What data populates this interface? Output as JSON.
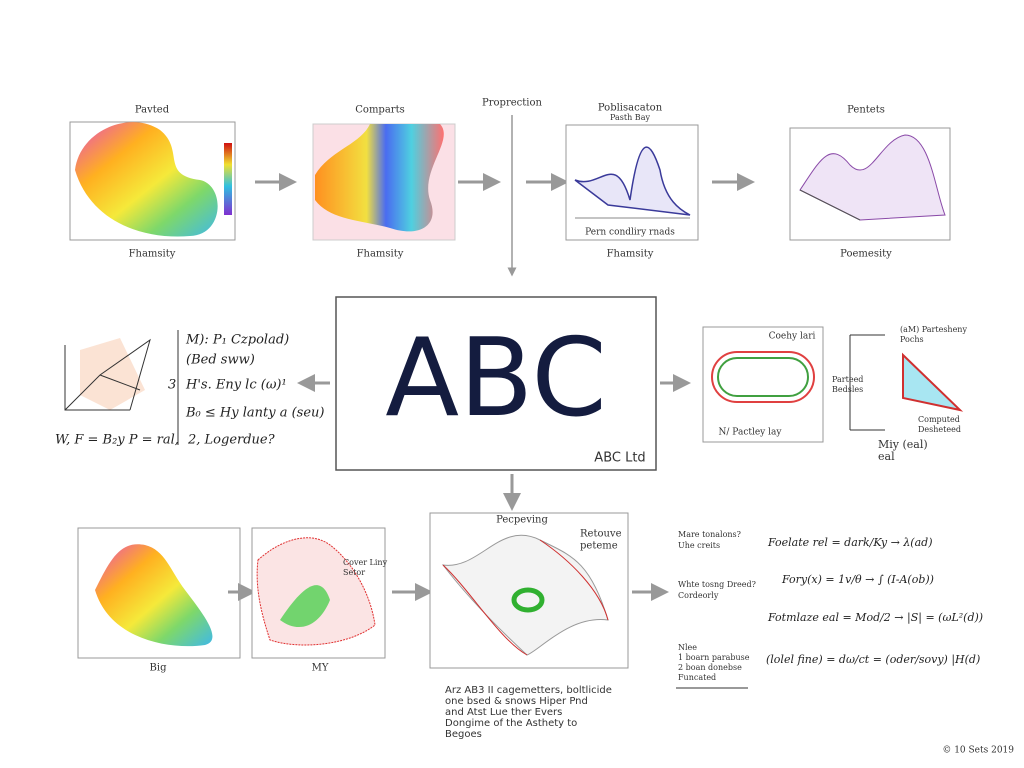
{
  "top_row": [
    {
      "title": "Pavted",
      "xlabel": "Fhamsity"
    },
    {
      "title": "Comparts",
      "xlabel": "Fhamsity"
    },
    {
      "title": "Poblisacaton",
      "subtitle": "Pasth Bay",
      "caption": "Pern condliry rnads",
      "xlabel": "Fhamsity"
    },
    {
      "title": "Pentets",
      "xlabel": "Poemesity"
    }
  ],
  "projection": "Proprection",
  "center": {
    "title": "ABC",
    "subtitle": "ABC Ltd"
  },
  "left_notes": {
    "lines": [
      "M): P₁ Czpolad)",
      "(Bed sww)",
      "H's. Eny lc (ω)¹",
      "B₀ ≤ Hy lanty a (seu)",
      "2, Logerdue?"
    ],
    "number": "3",
    "formula": "W, F = B₂y P = ral,"
  },
  "right_middle": {
    "oval_title": "Coehy lari",
    "oval_caption": "N/ Pactley lay",
    "top_label": [
      "(aM) Partesheny",
      "Pochs"
    ],
    "left_label": [
      "Parteed",
      "Bedsles"
    ],
    "bottom_label": [
      "Computed",
      "Desheteed"
    ],
    "foot_label": [
      "Miy (eal)",
      "eal"
    ]
  },
  "bottom_row": [
    {
      "xlabel": "Big"
    },
    {
      "xlabel": "MY",
      "label": [
        "Cover Liny",
        "Setor"
      ]
    },
    {
      "title": "Pecpeving",
      "label": [
        "Retouve",
        "peteme"
      ]
    }
  ],
  "caption": [
    "Arz AB3 II cagemetters, boltlicide",
    "one bsed & snows Hiper Pnd",
    "and Atst Lue ther Evers",
    "Dongime of the Asthety to",
    "Begoes"
  ],
  "right_notes": {
    "q1": [
      "Mare tonalons?",
      "Uhe creits"
    ],
    "q2": [
      "Whte tosng Dreed?",
      "Cordeorly"
    ],
    "q3": [
      "Nlee",
      "1 boarn parabuse",
      "2 boan donebse",
      "Funcated"
    ],
    "eq": [
      "Foelate rel = dark/Ky → λ(ad)",
      "Fory(x) = 1v/θ → ∫ (I-A(ob))",
      "Fotmlaze eal = Mod/2 → |S| = (ωL²(d))",
      "(lolel fine) = dω/ct = (oder/sovy) |H(d)"
    ]
  },
  "footer": "© 10 Sets 2019"
}
